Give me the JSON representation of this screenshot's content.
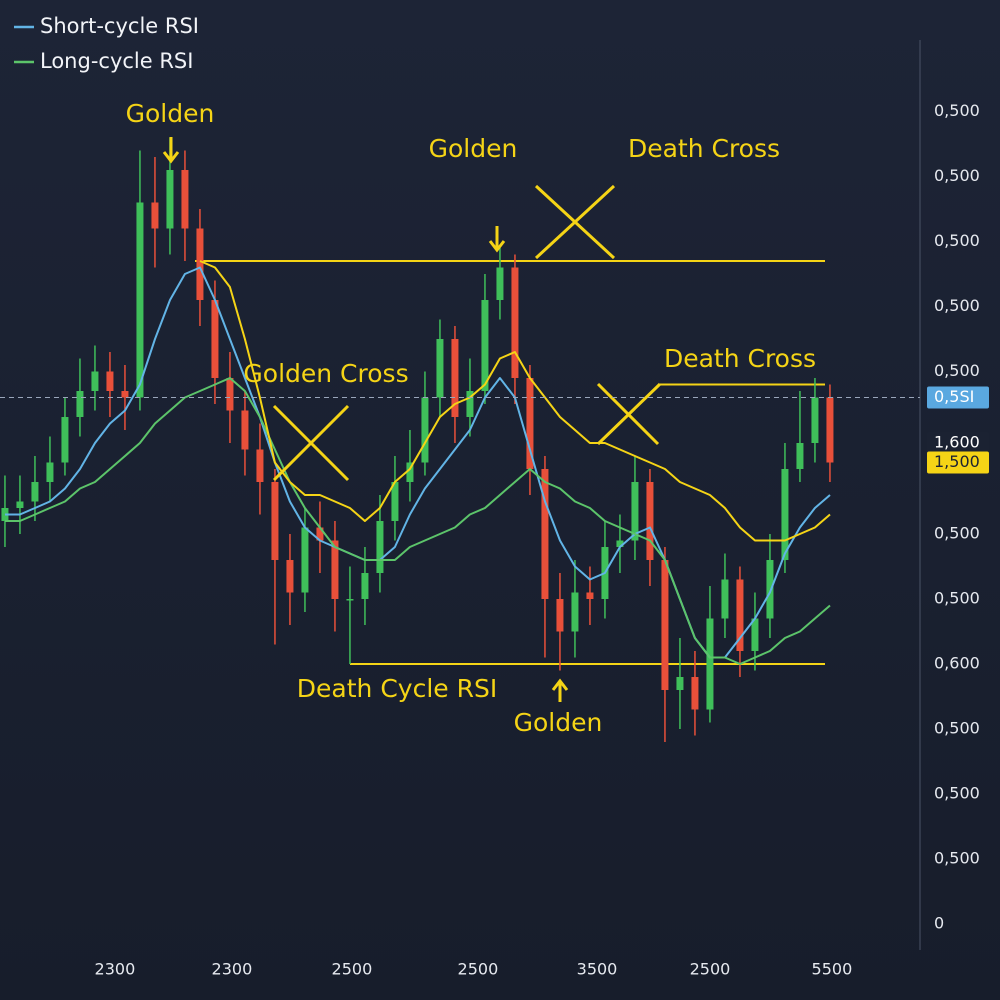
{
  "chart_data": {
    "type": "candlestick",
    "up_color": "#3fbf5a",
    "down_color": "#e8503a",
    "grid": true,
    "xlim": [
      -0.33,
      60.67
    ],
    "xticks": [
      {
        "value": 7.33,
        "label": "2300"
      },
      {
        "value": 15.13,
        "label": "2300"
      },
      {
        "value": 23.13,
        "label": "2500"
      },
      {
        "value": 31.53,
        "label": "2500"
      },
      {
        "value": 39.47,
        "label": "3500"
      },
      {
        "value": 47,
        "label": "2500"
      },
      {
        "value": 55.13,
        "label": "5500"
      }
    ],
    "ylim": [
      -0.4,
      13.6
    ],
    "yticks": [
      {
        "value": 12.5,
        "label": "0,500"
      },
      {
        "value": 11.5,
        "label": "0,500"
      },
      {
        "value": 10.5,
        "label": "0,500"
      },
      {
        "value": 9.5,
        "label": "0,500"
      },
      {
        "value": 8.5,
        "label": "0,500"
      },
      {
        "value": 6,
        "label": "0,500"
      },
      {
        "value": 5,
        "label": "0,500"
      },
      {
        "value": 4,
        "label": "0,600"
      },
      {
        "value": 3,
        "label": "0,500"
      },
      {
        "value": 2,
        "label": "0,500"
      },
      {
        "value": 1,
        "label": "0,500"
      },
      0
    ],
    "open": [
      6.2,
      6.4,
      6.5,
      6.8,
      7.1,
      7.8,
      8.2,
      8.5,
      8.2,
      8.1,
      11.1,
      10.7,
      11.6,
      10.7,
      9.6,
      8.4,
      7.9,
      7.3,
      6.8,
      5.6,
      5.1,
      6.1,
      5.9,
      5.0,
      5.0,
      5.4,
      6.2,
      6.8,
      7.1,
      8.1,
      9.0,
      7.8,
      8.2,
      9.6,
      10.1,
      8.4,
      7.0,
      5.0,
      4.5,
      5.1,
      5.0,
      5.8,
      5.9,
      6.8,
      5.6,
      3.6,
      3.8,
      3.3,
      4.7,
      5.3,
      4.2,
      4.7,
      5.6,
      7.0,
      7.4,
      8.1
    ],
    "high": [
      6.9,
      6.9,
      7.2,
      7.5,
      8.1,
      8.7,
      8.9,
      8.8,
      8.6,
      11.9,
      11.8,
      12.1,
      11.9,
      11.0,
      9.9,
      8.8,
      8.2,
      7.7,
      7.0,
      6.0,
      6.4,
      6.5,
      6.2,
      5.5,
      5.8,
      6.6,
      7.2,
      7.6,
      8.5,
      9.3,
      9.2,
      8.7,
      10.0,
      10.4,
      10.3,
      8.6,
      7.2,
      5.4,
      5.6,
      5.5,
      6.2,
      6.3,
      7.2,
      7.0,
      5.8,
      4.4,
      4.2,
      5.2,
      5.7,
      5.5,
      5.1,
      6.0,
      7.4,
      8.2,
      8.4,
      8.3
    ],
    "low": [
      5.8,
      6.0,
      6.2,
      6.5,
      6.9,
      7.5,
      7.9,
      7.8,
      7.6,
      7.9,
      10.1,
      10.3,
      10.2,
      9.2,
      8.0,
      7.4,
      6.9,
      6.3,
      4.3,
      4.6,
      4.8,
      5.4,
      4.5,
      4.0,
      4.6,
      5.1,
      5.9,
      6.5,
      6.9,
      7.8,
      7.4,
      7.5,
      8.0,
      9.3,
      8.0,
      6.6,
      4.1,
      3.9,
      4.1,
      4.6,
      4.7,
      5.4,
      5.6,
      5.2,
      2.8,
      3.0,
      2.9,
      3.1,
      4.4,
      3.8,
      3.9,
      4.4,
      5.4,
      6.8,
      7.1,
      6.8
    ],
    "close": [
      6.4,
      6.5,
      6.8,
      7.1,
      7.8,
      8.2,
      8.5,
      8.2,
      8.1,
      11.1,
      10.7,
      11.6,
      10.7,
      9.6,
      8.4,
      7.9,
      7.3,
      6.8,
      5.6,
      5.1,
      6.1,
      5.9,
      5.0,
      5.0,
      5.4,
      6.2,
      6.8,
      7.1,
      8.1,
      9.0,
      7.8,
      8.2,
      9.6,
      10.1,
      8.4,
      7.0,
      5.0,
      4.5,
      5.1,
      5.0,
      5.8,
      5.9,
      6.8,
      5.6,
      3.6,
      3.8,
      3.3,
      4.7,
      5.3,
      4.2,
      4.7,
      5.6,
      7.0,
      7.4,
      8.1,
      7.1
    ],
    "series": [
      {
        "name": "Short-cycle RSI",
        "color": "#62b4e6",
        "values": [
          6.3,
          6.3,
          6.4,
          6.5,
          6.7,
          7.0,
          7.4,
          7.7,
          7.9,
          8.3,
          9.0,
          9.6,
          10.0,
          10.1,
          9.6,
          9.0,
          8.4,
          7.8,
          7.1,
          6.5,
          6.1,
          5.9,
          5.8,
          5.7,
          5.6,
          5.6,
          5.8,
          6.3,
          6.7,
          7.0,
          7.3,
          7.6,
          8.1,
          8.4,
          8.1,
          7.3,
          6.5,
          5.9,
          5.5,
          5.3,
          5.4,
          5.8,
          6.0,
          6.1,
          5.6,
          5.0,
          4.4,
          4.1,
          4.1,
          4.4,
          4.7,
          5.1,
          5.7,
          6.1,
          6.4,
          6.6
        ]
      },
      {
        "name": "Long-cycle RSI",
        "color": "#5cc46a",
        "values": [
          6.2,
          6.2,
          6.3,
          6.4,
          6.5,
          6.7,
          6.8,
          7.0,
          7.2,
          7.4,
          7.7,
          7.9,
          8.1,
          8.2,
          8.3,
          8.4,
          8.2,
          7.8,
          7.3,
          6.8,
          6.4,
          6.1,
          5.8,
          5.7,
          5.6,
          5.6,
          5.6,
          5.8,
          5.9,
          6.0,
          6.1,
          6.3,
          6.4,
          6.6,
          6.8,
          7.0,
          6.8,
          6.7,
          6.5,
          6.4,
          6.2,
          6.1,
          6.0,
          5.9,
          5.6,
          5.0,
          4.4,
          4.1,
          4.1,
          4.0,
          4.1,
          4.2,
          4.4,
          4.5,
          4.7,
          4.9
        ]
      },
      {
        "color": "#f5d416",
        "values": [
          null,
          null,
          null,
          null,
          null,
          null,
          null,
          null,
          null,
          null,
          null,
          null,
          null,
          10.2,
          10.1,
          9.8,
          9.0,
          8.1,
          7.1,
          6.8,
          6.6,
          6.6,
          6.5,
          6.4,
          6.2,
          6.4,
          6.8,
          7.0,
          7.4,
          7.8,
          8.0,
          8.1,
          8.3,
          8.7,
          8.8,
          8.4,
          8.1,
          7.8,
          7.6,
          7.4,
          7.4,
          7.3,
          7.2,
          7.1,
          7.0,
          6.8,
          6.7,
          6.6,
          6.4,
          6.1,
          5.9,
          5.9,
          5.9,
          6.0,
          6.1,
          6.3
        ]
      }
    ],
    "levels": [
      10.2,
      8.3,
      4.0
    ],
    "markers": [
      {
        "value": 8.1,
        "label": "0,5SI"
      },
      {
        "value": 7.4,
        "label": "1,600"
      },
      {
        "value": 7.1,
        "label": "1,500"
      }
    ],
    "annotations": [
      "Golden",
      "Golden",
      "Death Cross",
      "Golden Cross",
      "Death Cross",
      "Death Cycle RSI",
      "Golden"
    ]
  }
}
